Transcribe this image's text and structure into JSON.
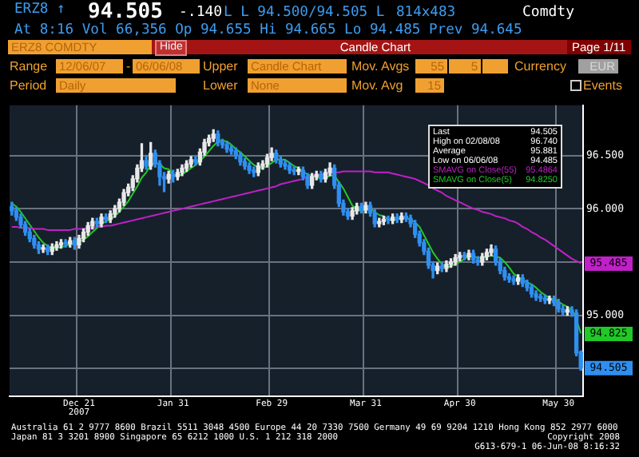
{
  "chart_data": {
    "type": "candlestick",
    "title": "Candle Chart",
    "categories": [
      null,
      null,
      null,
      null,
      null,
      null,
      null,
      null,
      null,
      null,
      null,
      null,
      null,
      null,
      null,
      "Dec 21\n2007",
      null,
      null,
      null,
      null,
      null,
      null,
      null,
      null,
      null,
      null,
      null,
      null,
      null,
      null,
      null,
      null,
      null,
      null,
      null,
      null,
      "Jan 31",
      null,
      null,
      null,
      null,
      null,
      null,
      null,
      null,
      null,
      null,
      null,
      null,
      null,
      null,
      null,
      null,
      null,
      null,
      null,
      null,
      null,
      "Feb 29",
      null,
      null,
      null,
      null,
      null,
      null,
      null,
      null,
      null,
      null,
      null,
      null,
      null,
      null,
      null,
      null,
      null,
      null,
      null,
      null,
      "Mar 31",
      null,
      null,
      null,
      null,
      null,
      null,
      null,
      null,
      null,
      null,
      null,
      null,
      null,
      null,
      null,
      null,
      null,
      null,
      null,
      null,
      "Apr 30",
      null,
      null,
      null,
      null,
      null,
      null,
      null,
      null,
      null,
      null,
      null,
      null,
      null,
      null,
      null,
      null,
      null,
      null,
      null,
      null,
      null,
      "May 30",
      null,
      null,
      null,
      null,
      null
    ],
    "ohlc": [
      [
        96.02,
        96.06,
        95.94,
        95.98
      ],
      [
        95.98,
        96.01,
        95.89,
        95.92
      ],
      [
        95.92,
        95.95,
        95.82,
        95.85
      ],
      [
        95.85,
        95.88,
        95.75,
        95.78
      ],
      [
        95.78,
        95.81,
        95.69,
        95.72
      ],
      [
        95.72,
        95.75,
        95.63,
        95.66
      ],
      [
        95.66,
        95.69,
        95.58,
        95.62
      ],
      [
        95.62,
        95.66,
        95.59,
        95.63
      ],
      [
        95.63,
        95.66,
        95.57,
        95.6
      ],
      [
        95.6,
        95.67,
        95.57,
        95.64
      ],
      [
        95.64,
        95.69,
        95.61,
        95.66
      ],
      [
        95.66,
        95.71,
        95.63,
        95.68
      ],
      [
        95.68,
        95.71,
        95.64,
        95.67
      ],
      [
        95.67,
        95.73,
        95.64,
        95.7
      ],
      [
        95.7,
        95.73,
        95.62,
        95.66
      ],
      [
        95.66,
        95.75,
        95.63,
        95.72
      ],
      [
        95.72,
        95.81,
        95.69,
        95.78
      ],
      [
        95.78,
        95.87,
        95.75,
        95.84
      ],
      [
        95.84,
        95.91,
        95.81,
        95.88
      ],
      [
        95.88,
        95.91,
        95.83,
        95.86
      ],
      [
        95.86,
        95.95,
        95.83,
        95.92
      ],
      [
        95.92,
        95.95,
        95.87,
        95.9
      ],
      [
        95.9,
        95.98,
        95.87,
        95.95
      ],
      [
        95.95,
        96.03,
        95.92,
        96.0
      ],
      [
        96.0,
        96.09,
        95.97,
        96.06
      ],
      [
        96.06,
        96.18,
        96.03,
        96.15
      ],
      [
        96.15,
        96.23,
        96.12,
        96.2
      ],
      [
        96.2,
        96.31,
        96.17,
        96.28
      ],
      [
        96.28,
        96.41,
        96.25,
        96.38
      ],
      [
        96.38,
        96.61,
        96.35,
        96.45
      ],
      [
        96.45,
        96.5,
        96.37,
        96.4
      ],
      [
        96.4,
        96.62,
        96.37,
        96.52
      ],
      [
        96.52,
        96.55,
        96.39,
        96.42
      ],
      [
        96.42,
        96.45,
        96.22,
        96.3
      ],
      [
        96.3,
        96.34,
        96.16,
        96.28
      ],
      [
        96.28,
        96.35,
        96.24,
        96.32
      ],
      [
        96.32,
        96.36,
        96.25,
        96.3
      ],
      [
        96.3,
        96.37,
        96.27,
        96.34
      ],
      [
        96.34,
        96.41,
        96.31,
        96.38
      ],
      [
        96.38,
        96.45,
        96.35,
        96.42
      ],
      [
        96.42,
        96.49,
        96.39,
        96.46
      ],
      [
        96.46,
        96.49,
        96.41,
        96.44
      ],
      [
        96.44,
        96.56,
        96.41,
        96.53
      ],
      [
        96.53,
        96.65,
        96.5,
        96.62
      ],
      [
        96.62,
        96.69,
        96.59,
        96.66
      ],
      [
        96.66,
        96.74,
        96.63,
        96.7
      ],
      [
        96.7,
        96.73,
        96.59,
        96.62
      ],
      [
        96.62,
        96.65,
        96.57,
        96.6
      ],
      [
        96.6,
        96.63,
        96.53,
        96.56
      ],
      [
        96.56,
        96.59,
        96.51,
        96.54
      ],
      [
        96.54,
        96.57,
        96.47,
        96.5
      ],
      [
        96.5,
        96.53,
        96.41,
        96.44
      ],
      [
        96.44,
        96.47,
        96.37,
        96.4
      ],
      [
        96.4,
        96.43,
        96.33,
        96.36
      ],
      [
        96.36,
        96.39,
        96.3,
        96.34
      ],
      [
        96.34,
        96.43,
        96.31,
        96.4
      ],
      [
        96.4,
        96.45,
        96.37,
        96.42
      ],
      [
        96.42,
        96.51,
        96.39,
        96.48
      ],
      [
        96.48,
        96.57,
        96.45,
        96.52
      ],
      [
        96.52,
        96.55,
        96.43,
        96.46
      ],
      [
        96.46,
        96.49,
        96.39,
        96.42
      ],
      [
        96.42,
        96.45,
        96.37,
        96.4
      ],
      [
        96.4,
        96.43,
        96.33,
        96.36
      ],
      [
        96.36,
        96.39,
        96.32,
        96.35
      ],
      [
        96.35,
        96.39,
        96.32,
        96.36
      ],
      [
        96.36,
        96.39,
        96.27,
        96.3
      ],
      [
        96.3,
        96.33,
        96.19,
        96.22
      ],
      [
        96.22,
        96.33,
        96.19,
        96.3
      ],
      [
        96.3,
        96.35,
        96.27,
        96.32
      ],
      [
        96.32,
        96.35,
        96.25,
        96.28
      ],
      [
        96.28,
        96.37,
        96.25,
        96.34
      ],
      [
        96.34,
        96.43,
        96.31,
        96.38
      ],
      [
        96.38,
        96.41,
        96.19,
        96.22
      ],
      [
        96.22,
        96.25,
        96.02,
        96.05
      ],
      [
        96.05,
        96.08,
        95.94,
        95.97
      ],
      [
        95.97,
        96.0,
        95.9,
        95.93
      ],
      [
        95.93,
        96.01,
        95.9,
        95.98
      ],
      [
        95.98,
        96.05,
        95.95,
        96.02
      ],
      [
        96.02,
        96.05,
        95.96,
        95.99
      ],
      [
        95.99,
        96.06,
        95.96,
        96.03
      ],
      [
        96.03,
        96.06,
        95.93,
        95.96
      ],
      [
        95.96,
        95.99,
        95.83,
        95.86
      ],
      [
        95.86,
        95.91,
        95.83,
        95.88
      ],
      [
        95.88,
        95.93,
        95.85,
        95.9
      ],
      [
        95.9,
        95.93,
        95.86,
        95.89
      ],
      [
        95.89,
        95.95,
        95.86,
        95.92
      ],
      [
        95.92,
        95.95,
        95.87,
        95.9
      ],
      [
        95.9,
        95.96,
        95.87,
        95.93
      ],
      [
        95.93,
        95.96,
        95.88,
        95.91
      ],
      [
        95.91,
        95.94,
        95.83,
        95.86
      ],
      [
        95.86,
        95.89,
        95.73,
        95.76
      ],
      [
        95.76,
        95.79,
        95.65,
        95.68
      ],
      [
        95.68,
        95.71,
        95.57,
        95.6
      ],
      [
        95.6,
        95.63,
        95.44,
        95.47
      ],
      [
        95.47,
        95.5,
        95.35,
        95.42
      ],
      [
        95.42,
        95.49,
        95.39,
        95.46
      ],
      [
        95.46,
        95.49,
        95.41,
        95.44
      ],
      [
        95.44,
        95.51,
        95.41,
        95.48
      ],
      [
        95.48,
        95.53,
        95.45,
        95.5
      ],
      [
        95.5,
        95.57,
        95.47,
        95.54
      ],
      [
        95.54,
        95.59,
        95.51,
        95.56
      ],
      [
        95.56,
        95.59,
        95.52,
        95.55
      ],
      [
        95.55,
        95.61,
        95.52,
        95.58
      ],
      [
        95.58,
        95.61,
        95.49,
        95.52
      ],
      [
        95.52,
        95.55,
        95.47,
        95.5
      ],
      [
        95.5,
        95.58,
        95.47,
        95.55
      ],
      [
        95.55,
        95.62,
        95.52,
        95.59
      ],
      [
        95.59,
        95.66,
        95.56,
        95.62
      ],
      [
        95.62,
        95.65,
        95.47,
        95.5
      ],
      [
        95.5,
        95.53,
        95.39,
        95.42
      ],
      [
        95.42,
        95.45,
        95.33,
        95.36
      ],
      [
        95.36,
        95.39,
        95.31,
        95.34
      ],
      [
        95.34,
        95.37,
        95.29,
        95.32
      ],
      [
        95.32,
        95.38,
        95.29,
        95.35
      ],
      [
        95.35,
        95.38,
        95.27,
        95.3
      ],
      [
        95.3,
        95.33,
        95.23,
        95.26
      ],
      [
        95.26,
        95.29,
        95.17,
        95.2
      ],
      [
        95.2,
        95.23,
        95.14,
        95.17
      ],
      [
        95.17,
        95.2,
        95.13,
        95.16
      ],
      [
        95.16,
        95.19,
        95.11,
        95.14
      ],
      [
        95.14,
        95.18,
        95.11,
        95.15
      ],
      [
        95.15,
        95.18,
        95.09,
        95.12
      ],
      [
        95.12,
        95.15,
        95.03,
        95.06
      ],
      [
        95.06,
        95.09,
        95.0,
        95.03
      ],
      [
        95.03,
        95.08,
        95.0,
        95.05
      ],
      [
        95.05,
        95.08,
        94.99,
        95.02
      ],
      [
        95.02,
        95.05,
        94.62,
        94.645
      ],
      [
        94.655,
        94.665,
        94.485,
        94.505
      ]
    ],
    "colors": [
      "#2f8ff0",
      "#2f8ff0",
      "#2f8ff0",
      "#2f8ff0",
      "#2f8ff0",
      "#2f8ff0",
      "#2f8ff0",
      "#e8e8e8",
      "#2f8ff0",
      "#e8e8e8",
      "#e8e8e8",
      "#e8e8e8",
      "#2f8ff0",
      "#e8e8e8",
      "#2f8ff0",
      "#e8e8e8",
      "#e8e8e8",
      "#e8e8e8",
      "#e8e8e8",
      "#2f8ff0",
      "#e8e8e8",
      "#2f8ff0",
      "#e8e8e8",
      "#e8e8e8",
      "#e8e8e8",
      "#e8e8e8",
      "#e8e8e8",
      "#e8e8e8",
      "#e8e8e8",
      "#e8e8e8",
      "#2f8ff0",
      "#e8e8e8",
      "#2f8ff0",
      "#2f8ff0",
      "#2f8ff0",
      "#e8e8e8",
      "#2f8ff0",
      "#e8e8e8",
      "#e8e8e8",
      "#e8e8e8",
      "#e8e8e8",
      "#2f8ff0",
      "#e8e8e8",
      "#e8e8e8",
      "#e8e8e8",
      "#e8e8e8",
      "#2f8ff0",
      "#2f8ff0",
      "#2f8ff0",
      "#2f8ff0",
      "#2f8ff0",
      "#2f8ff0",
      "#2f8ff0",
      "#2f8ff0",
      "#2f8ff0",
      "#e8e8e8",
      "#e8e8e8",
      "#e8e8e8",
      "#e8e8e8",
      "#2f8ff0",
      "#2f8ff0",
      "#2f8ff0",
      "#2f8ff0",
      "#2f8ff0",
      "#e8e8e8",
      "#2f8ff0",
      "#2f8ff0",
      "#e8e8e8",
      "#e8e8e8",
      "#2f8ff0",
      "#e8e8e8",
      "#e8e8e8",
      "#2f8ff0",
      "#2f8ff0",
      "#2f8ff0",
      "#2f8ff0",
      "#e8e8e8",
      "#e8e8e8",
      "#2f8ff0",
      "#e8e8e8",
      "#2f8ff0",
      "#2f8ff0",
      "#e8e8e8",
      "#e8e8e8",
      "#2f8ff0",
      "#e8e8e8",
      "#2f8ff0",
      "#e8e8e8",
      "#2f8ff0",
      "#2f8ff0",
      "#2f8ff0",
      "#2f8ff0",
      "#2f8ff0",
      "#2f8ff0",
      "#2f8ff0",
      "#e8e8e8",
      "#2f8ff0",
      "#e8e8e8",
      "#e8e8e8",
      "#e8e8e8",
      "#e8e8e8",
      "#2f8ff0",
      "#e8e8e8",
      "#2f8ff0",
      "#2f8ff0",
      "#e8e8e8",
      "#e8e8e8",
      "#e8e8e8",
      "#2f8ff0",
      "#2f8ff0",
      "#2f8ff0",
      "#2f8ff0",
      "#2f8ff0",
      "#e8e8e8",
      "#2f8ff0",
      "#2f8ff0",
      "#2f8ff0",
      "#2f8ff0",
      "#2f8ff0",
      "#2f8ff0",
      "#e8e8e8",
      "#2f8ff0",
      "#2f8ff0",
      "#2f8ff0",
      "#e8e8e8",
      "#2f8ff0",
      "#2f8ff0",
      "#2f8ff0"
    ],
    "series": [
      {
        "type": "line",
        "name": "SMAVG on Close(55)",
        "color": "#c020c8",
        "values": [
          95.83,
          95.83,
          95.82,
          95.82,
          95.82,
          95.81,
          95.81,
          95.81,
          95.8,
          95.8,
          95.8,
          95.8,
          95.8,
          95.8,
          95.81,
          95.81,
          95.81,
          95.82,
          95.82,
          95.83,
          95.83,
          95.84,
          95.84,
          95.85,
          95.86,
          95.87,
          95.88,
          95.89,
          95.9,
          95.91,
          95.92,
          95.93,
          95.94,
          95.95,
          95.96,
          95.97,
          95.98,
          95.99,
          96.0,
          96.01,
          96.02,
          96.03,
          96.04,
          96.05,
          96.06,
          96.07,
          96.08,
          96.09,
          96.1,
          96.11,
          96.12,
          96.13,
          96.14,
          96.15,
          96.16,
          96.17,
          96.18,
          96.19,
          96.2,
          96.21,
          96.23,
          96.24,
          96.25,
          96.26,
          96.27,
          96.28,
          96.3,
          96.31,
          96.32,
          96.32,
          96.33,
          96.33,
          96.34,
          96.34,
          96.35,
          96.35,
          96.35,
          96.35,
          96.35,
          96.35,
          96.35,
          96.34,
          96.34,
          96.34,
          96.34,
          96.33,
          96.32,
          96.31,
          96.3,
          96.29,
          96.28,
          96.26,
          96.24,
          96.22,
          96.19,
          96.17,
          96.15,
          96.12,
          96.1,
          96.08,
          96.06,
          96.04,
          96.02,
          96.0,
          95.99,
          95.97,
          95.96,
          95.95,
          95.93,
          95.92,
          95.91,
          95.89,
          95.88,
          95.86,
          95.83,
          95.81,
          95.78,
          95.76,
          95.73,
          95.71,
          95.68,
          95.65,
          95.62,
          95.59,
          95.56,
          95.53,
          95.51,
          95.49
        ]
      },
      {
        "type": "line",
        "name": "SMAVG on Close(5)",
        "color": "#20c828",
        "values": [
          96.05,
          96.02,
          95.97,
          95.91,
          95.85,
          95.79,
          95.73,
          95.68,
          95.65,
          95.63,
          95.63,
          95.64,
          95.65,
          95.67,
          95.67,
          95.69,
          95.71,
          95.74,
          95.78,
          95.82,
          95.86,
          95.88,
          95.9,
          95.93,
          95.97,
          96.02,
          96.07,
          96.14,
          96.21,
          96.29,
          96.34,
          96.41,
          96.43,
          96.42,
          96.38,
          96.37,
          96.32,
          96.31,
          96.32,
          96.35,
          96.38,
          96.41,
          96.45,
          96.49,
          96.54,
          96.59,
          96.63,
          96.64,
          96.63,
          96.6,
          96.56,
          96.53,
          96.49,
          96.45,
          96.41,
          96.39,
          96.38,
          96.4,
          96.43,
          96.46,
          96.46,
          96.46,
          96.43,
          96.4,
          96.38,
          96.35,
          96.32,
          96.31,
          96.3,
          96.28,
          96.29,
          96.31,
          96.31,
          96.25,
          96.19,
          96.11,
          96.03,
          95.99,
          95.98,
          95.99,
          96.0,
          95.97,
          95.94,
          95.93,
          95.9,
          95.89,
          95.9,
          95.91,
          95.91,
          95.9,
          95.87,
          95.83,
          95.75,
          95.67,
          95.59,
          95.53,
          95.48,
          95.45,
          95.46,
          95.48,
          95.5,
          95.53,
          95.55,
          95.55,
          95.54,
          95.54,
          95.55,
          95.56,
          95.55,
          95.54,
          95.5,
          95.45,
          95.39,
          95.36,
          95.33,
          95.31,
          95.29,
          95.26,
          95.22,
          95.19,
          95.16,
          95.15,
          95.13,
          95.1,
          95.08,
          95.05,
          94.96,
          94.83
        ]
      }
    ],
    "ylim": [
      94.24,
      96.97
    ],
    "yticks": [
      {
        "value": 96.5,
        "label": "96.500"
      },
      {
        "value": 96,
        "label": "96.000"
      },
      {
        "value": 95.5,
        "label": null
      },
      {
        "value": 95,
        "label": "95.000"
      },
      {
        "value": 94.5,
        "label": null
      }
    ],
    "grid": true,
    "legend": "top right",
    "marker": "none",
    "line_style": "solid",
    "annotations": [
      "ERZ8 ↑",
      "94.505",
      "-.140",
      "L L 94.500/94.505 L",
      "814x483",
      "Comdty",
      "At 8:16 Vol 66,356 Op 94.655 Hi 94.665 Lo 94.485 Prev 94.645",
      "ERZ8 COMDTY",
      "Hide",
      "Page 1/11",
      "Range",
      "12/06/07",
      "-",
      "06/06/08",
      "Upper",
      "Candle Chart",
      "Mov. Avgs",
      "55",
      "5",
      "Currency",
      "EUR",
      "Period",
      "Daily",
      "Lower",
      "None",
      "Mov. Avg",
      "15",
      "Events",
      "Last",
      "94.505",
      "High on 02/08/08",
      "96.740",
      "Average",
      "95.881",
      "Low on 06/06/08",
      "94.485",
      "95.4864",
      "94.8250",
      {
        "text": "95.485",
        "y": 95.485
      },
      {
        "text": "94.825",
        "y": 94.825
      },
      {
        "text": "94.505",
        "y": 94.505
      },
      "Australia 61 2 9777 8600 Brazil 5511 3048 4500 Europe 44 20 7330 7500 Germany 49 69 9204 1210 Hong Kong 852 2977 6000",
      "Japan 81 3 3201 8900      Singapore 65 6212 1000      U.S. 1 212 318 2000",
      "Copyright 2008",
      "G613-679-1 06-Jun-08  8:16:32"
    ]
  }
}
